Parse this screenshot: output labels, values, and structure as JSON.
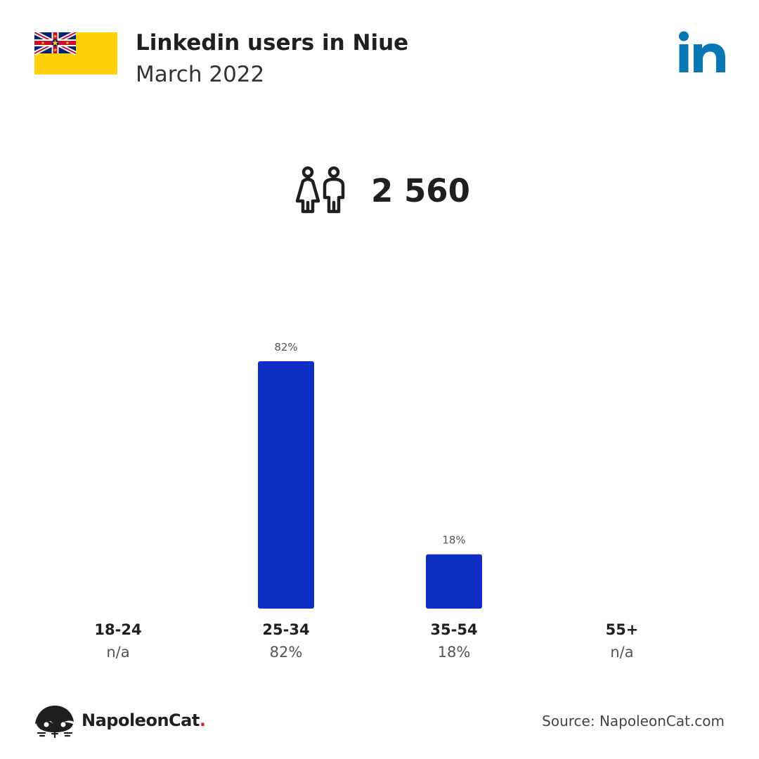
{
  "header": {
    "title": "Linkedin users in Niue",
    "subtitle": "March 2022"
  },
  "total": {
    "value": "2 560",
    "icon": "people-icon"
  },
  "chart_data": {
    "type": "bar",
    "categories": [
      "18-24",
      "25-34",
      "35-54",
      "55+"
    ],
    "values": [
      null,
      82,
      18,
      null
    ],
    "bar_labels": [
      "",
      "82%",
      "18%",
      ""
    ],
    "value_labels": [
      "n/a",
      "82%",
      "18%",
      "n/a"
    ],
    "ylim": [
      0,
      82
    ],
    "bar_color": "#0f2ec4"
  },
  "footer": {
    "brand": "NapoleonCat",
    "brand_dot": ".",
    "source": "Source: NapoleonCat.com"
  },
  "icons": {
    "flag": "niue-flag-icon",
    "platform": "linkedin-logo-icon",
    "brand": "napoleoncat-logo-icon"
  },
  "colors": {
    "bar": "#0f2ec4",
    "linkedin": "#0a77b5",
    "flag_yellow": "#fed10a",
    "brand_dot": "#e02020"
  }
}
